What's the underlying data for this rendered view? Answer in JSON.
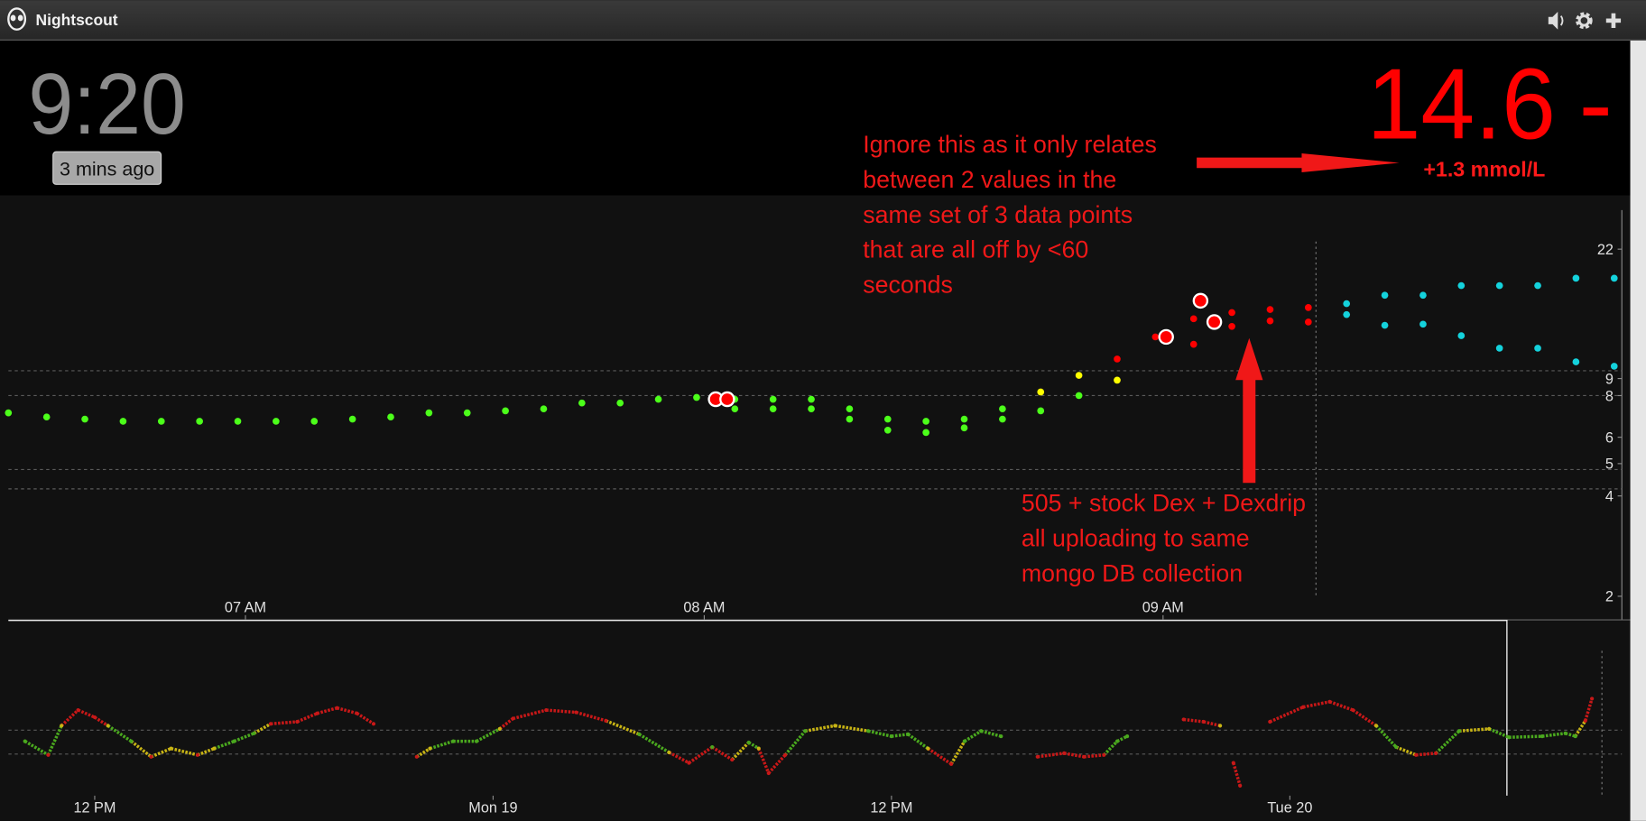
{
  "header": {
    "title": "Nightscout"
  },
  "status": {
    "clock": "9:20",
    "last_update": "3 mins ago",
    "bg": "14.6",
    "direction": "-",
    "delta": "+1.3 mmol/L"
  },
  "annotations": [
    {
      "lines": [
        "Ignore this as it only relates",
        "between 2 values in the",
        "same set of 3 data points",
        "that are all off by <60",
        "seconds"
      ]
    },
    {
      "lines": [
        "505 + stock Dex + Dexdrip",
        "all uploading to same",
        "mongo DB collection"
      ]
    }
  ],
  "main_chart": {
    "type": "scatter",
    "log_scale": true,
    "xlim": [
      389,
      600
    ],
    "xticks": [
      {
        "value": 420,
        "label": "07 AM"
      },
      {
        "value": 480,
        "label": "08 AM"
      },
      {
        "value": 540,
        "label": "09 AM"
      }
    ],
    "ylim": [
      2,
      28
    ],
    "yticks": [
      2,
      4,
      5,
      6,
      8,
      9,
      22
    ],
    "reference_lines": [
      9.5,
      8,
      4.8,
      4.2
    ],
    "now": 560,
    "series": [
      {
        "color": "#4cff1a",
        "marker": "dot",
        "x": [
          389,
          394,
          399,
          404,
          409,
          414,
          419,
          424,
          429,
          434,
          439,
          444,
          449,
          454,
          459,
          464,
          469,
          474,
          479,
          484,
          484,
          489,
          489,
          494,
          494,
          499,
          499,
          504,
          504,
          509,
          509,
          514,
          514,
          519,
          519,
          524,
          529
        ],
        "values": [
          7.1,
          6.9,
          6.8,
          6.7,
          6.7,
          6.7,
          6.7,
          6.7,
          6.7,
          6.8,
          6.9,
          7.1,
          7.1,
          7.2,
          7.3,
          7.6,
          7.6,
          7.8,
          7.9,
          7.8,
          7.3,
          7.8,
          7.3,
          7.8,
          7.3,
          7.3,
          6.8,
          6.8,
          6.3,
          6.7,
          6.2,
          6.8,
          6.4,
          7.3,
          6.8,
          7.2,
          8.0
        ]
      },
      {
        "color": "#ffff00",
        "marker": "dot",
        "x": [
          524,
          529,
          534
        ],
        "values": [
          8.2,
          9.2,
          8.9
        ]
      },
      {
        "color": "#ff0000",
        "marker": "dot",
        "x": [
          534,
          539,
          544,
          544,
          549,
          549,
          554,
          554,
          559,
          559
        ],
        "values": [
          10.3,
          12.0,
          13.6,
          11.4,
          14.2,
          12.9,
          14.5,
          13.4,
          14.7,
          13.3
        ]
      },
      {
        "color": "#ff0000",
        "marker": "ring",
        "x": [
          481.5,
          483,
          540.4,
          544.9,
          546.7
        ],
        "values": [
          7.8,
          7.8,
          12.0,
          15.4,
          13.3
        ]
      },
      {
        "color": "#14d2dc",
        "marker": "dot",
        "x": [
          564,
          564,
          569,
          569,
          574,
          574,
          579,
          579,
          584,
          584,
          589,
          589,
          594,
          594,
          599,
          599
        ],
        "values": [
          15.1,
          14.0,
          16.0,
          13.0,
          16.0,
          13.1,
          17.1,
          12.1,
          17.1,
          11.1,
          17.1,
          11.1,
          18.0,
          10.1,
          18.0,
          9.8
        ]
      }
    ]
  },
  "overview_chart": {
    "type": "line",
    "log_scale": true,
    "xlim": [
      9.4,
      58
    ],
    "xticks": [
      {
        "value": 12,
        "label": "12 PM"
      },
      {
        "value": 24,
        "label": "Mon 19"
      },
      {
        "value": 36,
        "label": "12 PM"
      },
      {
        "value": 48,
        "label": "Tue 20"
      }
    ],
    "ylim": [
      1.2,
      35
    ],
    "reference_lines": [
      8,
      4
    ],
    "now": 57.4,
    "colors": {
      "in_range": "#4aa81e",
      "warn": "#c8b414",
      "urgent": "#c81818"
    },
    "x": [
      9.9,
      10.6,
      11.0,
      11.5,
      12.0,
      12.4,
      13.1,
      13.7,
      14.3,
      15.1,
      15.6,
      16.2,
      16.8,
      17.3,
      18.1,
      18.7,
      19.3,
      19.9,
      20.4,
      21.0,
      21.7,
      22.1,
      22.8,
      23.5,
      24.2,
      24.6,
      25.6,
      26.5,
      27.4,
      28.4,
      29.3,
      29.9,
      30.6,
      31.2,
      31.7,
      32.0,
      32.3,
      32.8,
      33.4,
      34.3,
      35.3,
      36.0,
      36.5,
      37.1,
      37.8,
      38.2,
      38.7,
      39.3,
      39.8,
      40.4,
      41.2,
      41.8,
      42.4,
      42.8,
      43.1,
      44.0,
      44.8,
      45.4,
      45.9,
      46.1,
      46.3,
      46.5,
      47.0,
      47.4,
      48.4,
      49.2,
      49.9,
      50.6,
      51.2,
      51.8,
      52.4,
      53.1,
      54.0,
      54.6,
      55.6,
      56.3,
      56.6,
      56.9,
      57.1
    ],
    "values": [
      5.8,
      3.9,
      9.1,
      14.3,
      11.6,
      9.1,
      5.8,
      3.7,
      4.7,
      3.9,
      4.7,
      5.8,
      7.3,
      9.6,
      10.2,
      13.0,
      15.2,
      13.0,
      9.6,
      null,
      3.7,
      4.7,
      5.8,
      5.8,
      8.3,
      11.2,
      14.3,
      13.4,
      10.5,
      7.1,
      4.2,
      3.1,
      4.9,
      3.4,
      5.6,
      4.7,
      2.3,
      3.9,
      7.8,
      9.1,
      7.8,
      6.7,
      7.1,
      4.7,
      3.0,
      5.8,
      7.8,
      6.7,
      null,
      3.7,
      4.1,
      3.7,
      3.9,
      5.8,
      6.7,
      null,
      10.9,
      10.2,
      9.1,
      null,
      3.1,
      1.6,
      null,
      10.2,
      15.6,
      18.2,
      14.3,
      9.1,
      4.9,
      3.9,
      4.1,
      7.8,
      8.3,
      6.5,
      6.7,
      7.3,
      6.7,
      10.5,
      19.9
    ]
  }
}
